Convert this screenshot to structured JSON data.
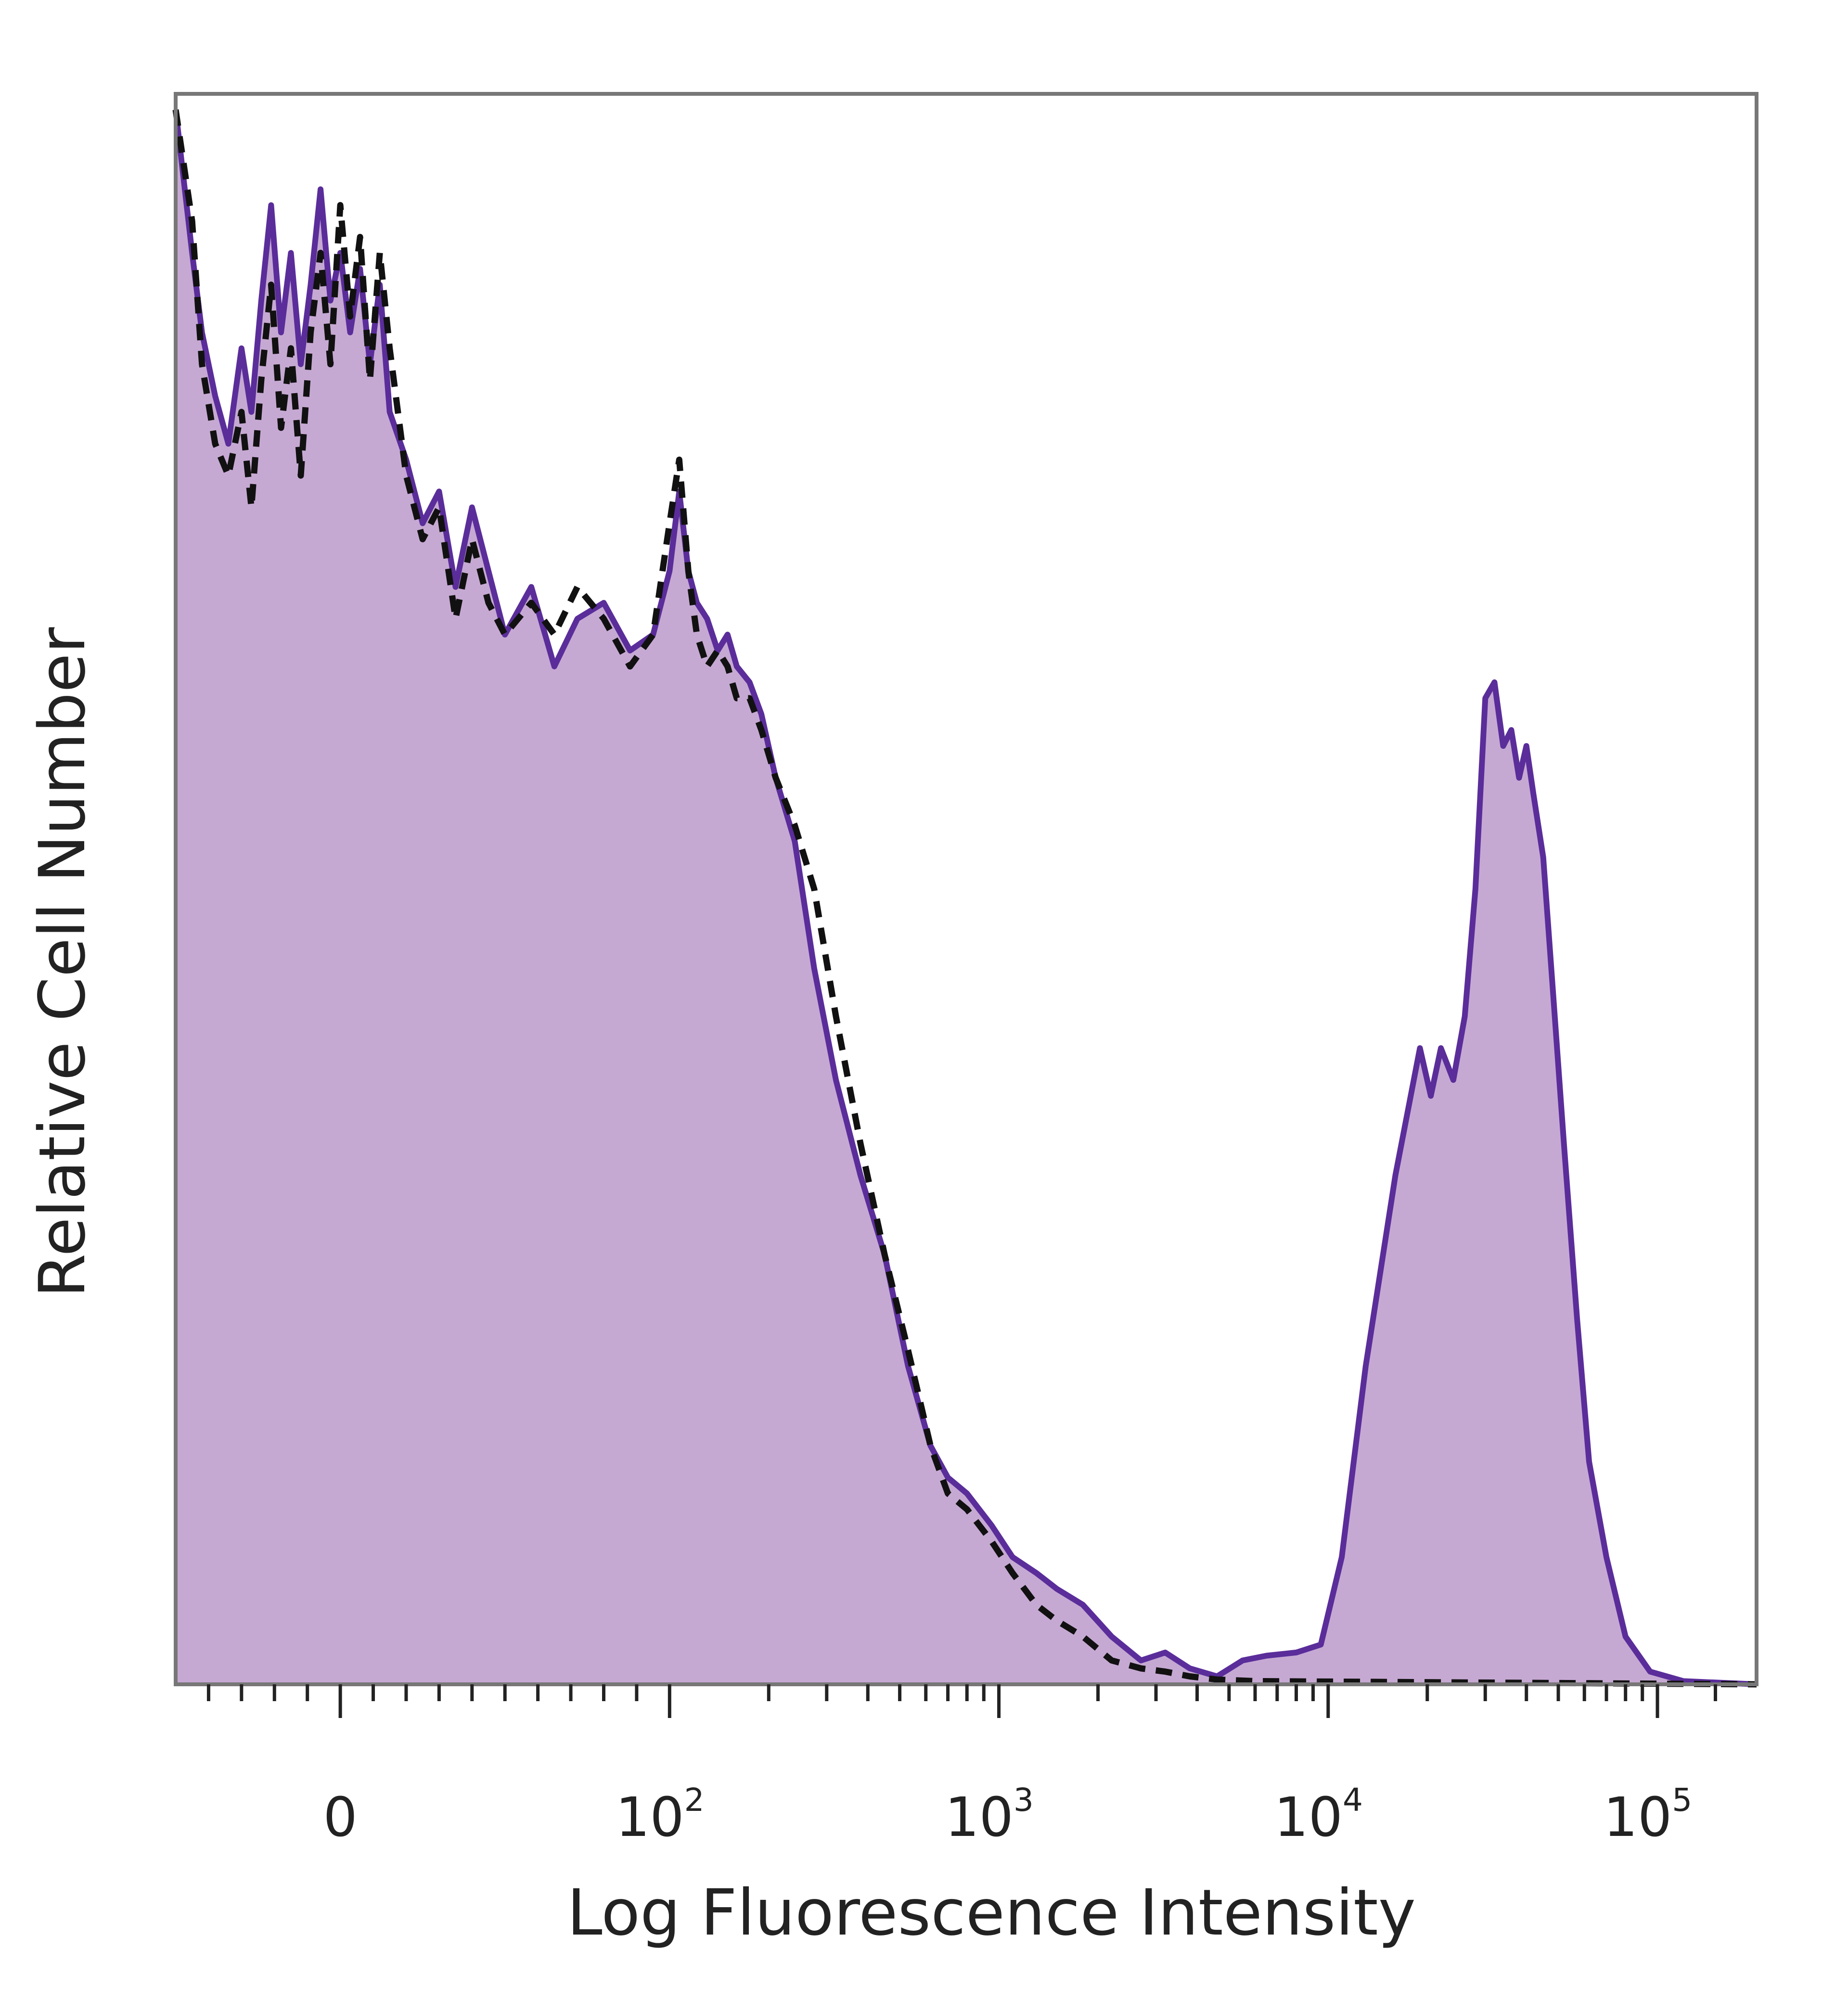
{
  "chart_data": {
    "type": "area",
    "xlabel": "Log Fluorescence Intensity",
    "ylabel": "Relative Cell Number",
    "x_scale": "biexponential",
    "xlim": [
      -50,
      200000
    ],
    "ylim": [
      0,
      100
    ],
    "grid": false,
    "x_ticks": [
      {
        "value": 0,
        "base": "0",
        "exp": ""
      },
      {
        "value": 100,
        "base": "10",
        "exp": "2"
      },
      {
        "value": 1000,
        "base": "10",
        "exp": "3"
      },
      {
        "value": 10000,
        "base": "10",
        "exp": "4"
      },
      {
        "value": 100000,
        "base": "10",
        "exp": "5"
      }
    ],
    "colors": {
      "stained_fill": "#c6a9d3",
      "stained_line": "#5a2d9a",
      "control_line": "#111111",
      "frame": "#777777"
    },
    "series": [
      {
        "style": "filled-solid",
        "points": [
          [
            -50,
            99
          ],
          [
            -45,
            90
          ],
          [
            -42,
            85
          ],
          [
            -38,
            81
          ],
          [
            -34,
            78
          ],
          [
            -30,
            84
          ],
          [
            -27,
            80
          ],
          [
            -24,
            87
          ],
          [
            -21,
            93
          ],
          [
            -18,
            85
          ],
          [
            -15,
            90
          ],
          [
            -12,
            83
          ],
          [
            -9,
            88
          ],
          [
            -6,
            94
          ],
          [
            -3,
            87
          ],
          [
            0,
            90
          ],
          [
            3,
            85
          ],
          [
            6,
            89
          ],
          [
            9,
            83
          ],
          [
            12,
            88
          ],
          [
            15,
            80
          ],
          [
            20,
            77
          ],
          [
            25,
            73
          ],
          [
            30,
            75
          ],
          [
            35,
            69
          ],
          [
            40,
            74
          ],
          [
            45,
            70
          ],
          [
            50,
            66
          ],
          [
            58,
            69
          ],
          [
            65,
            64
          ],
          [
            72,
            67
          ],
          [
            80,
            68
          ],
          [
            88,
            65
          ],
          [
            95,
            66
          ],
          [
            100,
            70
          ],
          [
            107,
            75
          ],
          [
            114,
            70
          ],
          [
            121,
            68
          ],
          [
            130,
            67
          ],
          [
            140,
            65
          ],
          [
            150,
            66
          ],
          [
            160,
            64
          ],
          [
            175,
            63
          ],
          [
            190,
            61
          ],
          [
            210,
            57
          ],
          [
            240,
            53
          ],
          [
            275,
            45
          ],
          [
            320,
            38
          ],
          [
            380,
            32
          ],
          [
            450,
            27
          ],
          [
            530,
            20
          ],
          [
            620,
            15
          ],
          [
            700,
            13
          ],
          [
            800,
            12
          ],
          [
            950,
            10
          ],
          [
            1100,
            8
          ],
          [
            1300,
            7
          ],
          [
            1500,
            6
          ],
          [
            1800,
            5
          ],
          [
            2200,
            3
          ],
          [
            2700,
            1.5
          ],
          [
            3200,
            2
          ],
          [
            3800,
            1
          ],
          [
            4600,
            0.5
          ],
          [
            5500,
            1.5
          ],
          [
            6500,
            1.8
          ],
          [
            8000,
            2
          ],
          [
            9500,
            2.5
          ],
          [
            11000,
            8
          ],
          [
            13000,
            20
          ],
          [
            16000,
            32
          ],
          [
            19000,
            40
          ],
          [
            20500,
            37
          ],
          [
            22000,
            40
          ],
          [
            24000,
            38
          ],
          [
            26000,
            42
          ],
          [
            28000,
            50
          ],
          [
            30000,
            62
          ],
          [
            32000,
            63
          ],
          [
            34000,
            59
          ],
          [
            36000,
            60
          ],
          [
            38000,
            57
          ],
          [
            40000,
            59
          ],
          [
            42000,
            56
          ],
          [
            45000,
            52
          ],
          [
            48000,
            44
          ],
          [
            52000,
            34
          ],
          [
            57000,
            23
          ],
          [
            62000,
            14
          ],
          [
            70000,
            8
          ],
          [
            80000,
            3
          ],
          [
            95000,
            0.8
          ],
          [
            120000,
            0.2
          ],
          [
            200000,
            0
          ]
        ]
      },
      {
        "style": "dashed",
        "points": [
          [
            -50,
            99
          ],
          [
            -45,
            92
          ],
          [
            -42,
            83
          ],
          [
            -38,
            78
          ],
          [
            -34,
            76
          ],
          [
            -30,
            80
          ],
          [
            -27,
            74
          ],
          [
            -24,
            82
          ],
          [
            -21,
            88
          ],
          [
            -18,
            79
          ],
          [
            -15,
            84
          ],
          [
            -12,
            76
          ],
          [
            -9,
            85
          ],
          [
            -6,
            90
          ],
          [
            -3,
            83
          ],
          [
            0,
            93
          ],
          [
            3,
            86
          ],
          [
            6,
            91
          ],
          [
            9,
            82
          ],
          [
            12,
            90
          ],
          [
            15,
            84
          ],
          [
            20,
            76
          ],
          [
            25,
            72
          ],
          [
            30,
            74
          ],
          [
            35,
            67
          ],
          [
            40,
            72
          ],
          [
            45,
            68
          ],
          [
            50,
            66
          ],
          [
            58,
            68
          ],
          [
            65,
            66
          ],
          [
            72,
            69
          ],
          [
            80,
            67
          ],
          [
            88,
            64
          ],
          [
            95,
            66
          ],
          [
            100,
            73
          ],
          [
            107,
            77
          ],
          [
            114,
            70
          ],
          [
            121,
            66
          ],
          [
            130,
            64
          ],
          [
            140,
            65
          ],
          [
            150,
            64
          ],
          [
            160,
            62
          ],
          [
            175,
            62
          ],
          [
            190,
            60
          ],
          [
            210,
            57
          ],
          [
            240,
            54
          ],
          [
            275,
            50
          ],
          [
            320,
            42
          ],
          [
            380,
            34
          ],
          [
            450,
            27
          ],
          [
            530,
            21
          ],
          [
            620,
            15
          ],
          [
            700,
            12
          ],
          [
            800,
            11
          ],
          [
            950,
            9
          ],
          [
            1100,
            7
          ],
          [
            1300,
            5
          ],
          [
            1500,
            4
          ],
          [
            1800,
            3
          ],
          [
            2200,
            1.5
          ],
          [
            2700,
            1
          ],
          [
            3200,
            0.8
          ],
          [
            3800,
            0.5
          ],
          [
            4600,
            0.3
          ],
          [
            6000,
            0.2
          ],
          [
            200000,
            0
          ]
        ]
      }
    ]
  }
}
